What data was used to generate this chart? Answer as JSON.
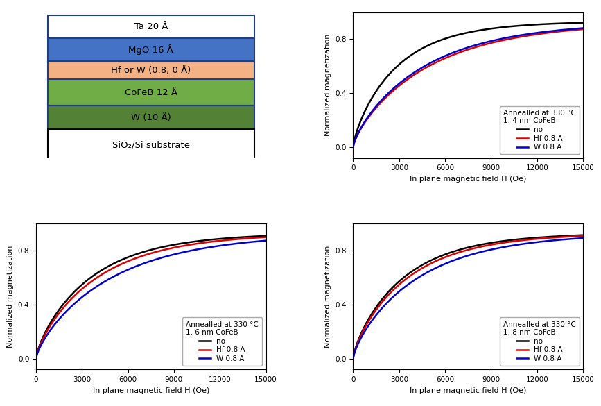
{
  "fig_size": [
    8.67,
    5.85
  ],
  "dpi": 100,
  "background_color": "#ffffff",
  "layer_diagram": {
    "layers": [
      {
        "label": "Ta 20 Å",
        "color": "#ffffff",
        "edge_color": "#1f3f7f",
        "text_color": "#000000"
      },
      {
        "label": "MgO 16 Å",
        "color": "#4472c4",
        "edge_color": "#1f3f7f",
        "text_color": "#000000"
      },
      {
        "label": "Hf or W (0.8, 0 Å)",
        "color": "#f4b183",
        "edge_color": "#1f3f7f",
        "text_color": "#000000"
      },
      {
        "label": "CoFeB 12 Å",
        "color": "#70ad47",
        "edge_color": "#1f3f7f",
        "text_color": "#000000"
      },
      {
        "label": "W (10 Å)",
        "color": "#538135",
        "edge_color": "#1f3f7f",
        "text_color": "#000000"
      },
      {
        "label": "SiO₂/Si substrate",
        "color": "#ffffff",
        "edge_color": "#000000",
        "text_color": "#000000"
      }
    ],
    "heights": [
      0.13,
      0.13,
      0.1,
      0.15,
      0.13,
      0.18
    ]
  },
  "plots": [
    {
      "title_line1": "Annealled at 330 °C",
      "title_line2": "1. 4 nm CoFeB",
      "black_scale": 4200,
      "red_scale": 7200,
      "blue_scale": 6800,
      "black_power": 0.72,
      "red_power": 0.72,
      "blue_power": 0.72
    },
    {
      "title_line1": "Annealled at 330 °C",
      "title_line2": "1. 6 nm CoFeB",
      "black_scale": 5200,
      "red_scale": 5800,
      "blue_scale": 7200,
      "black_power": 0.72,
      "red_power": 0.72,
      "blue_power": 0.72
    },
    {
      "title_line1": "Annealled at 330 °C",
      "title_line2": "1. 8 nm CoFeB",
      "black_scale": 4800,
      "red_scale": 5200,
      "blue_scale": 6200,
      "black_power": 0.72,
      "red_power": 0.72,
      "blue_power": 0.72
    }
  ],
  "x_label": "In plane magnetic field H (Oe)",
  "y_label": "Normalized magnetization",
  "xlim": [
    0,
    15000
  ],
  "xticks": [
    0,
    3000,
    6000,
    9000,
    12000,
    15000
  ],
  "ylim": [
    -0.08,
    1.0
  ],
  "yticks": [
    0.0,
    0.4,
    0.8
  ],
  "legend_labels": [
    "no",
    "Hf 0.8 A",
    "W 0.8 A"
  ],
  "line_colors": [
    "#000000",
    "#dd0000",
    "#0000cc"
  ],
  "line_width": 1.8
}
